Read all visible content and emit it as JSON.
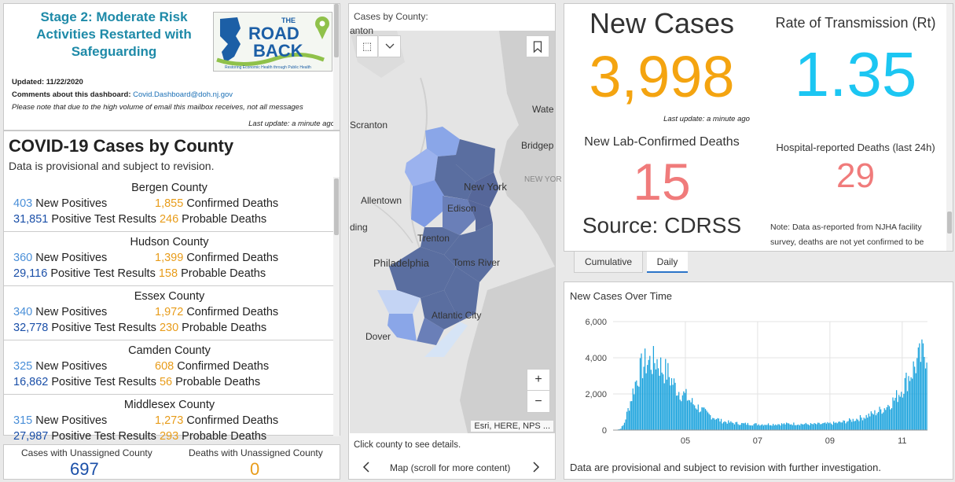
{
  "header": {
    "stage_title": "Stage 2: Moderate Risk Activities Restarted with Safeguarding",
    "logo_text_the": "THE",
    "logo_text_road": "ROAD",
    "logo_text_back": "BACK",
    "logo_tagline": "Restoring Economic Health through Public Health",
    "updated": "Updated: 11/22/2020",
    "comments_label": "Comments about this dashboard:",
    "comments_email": "Covid.Dashboard@doh.nj.gov",
    "note": "Please note that due to the high volume of email this mailbox receives, not all messages",
    "last_update": "Last update: a minute ago"
  },
  "county_list": {
    "title": "COVID-19 Cases by County",
    "subtitle": "Data is provisional and subject to revision.",
    "label_new_positives": "New Positives",
    "label_confirmed_deaths": "Confirmed Deaths",
    "label_positive_results": "Positive Test Results",
    "label_probable_deaths": "Probable Deaths",
    "counties": [
      {
        "name": "Bergen County",
        "new_positives": "403",
        "confirmed_deaths": "1,855",
        "positive_results": "31,851",
        "probable_deaths": "246"
      },
      {
        "name": "Hudson County",
        "new_positives": "360",
        "confirmed_deaths": "1,399",
        "positive_results": "29,116",
        "probable_deaths": "158"
      },
      {
        "name": "Essex County",
        "new_positives": "340",
        "confirmed_deaths": "1,972",
        "positive_results": "32,778",
        "probable_deaths": "230"
      },
      {
        "name": "Camden County",
        "new_positives": "325",
        "confirmed_deaths": "608",
        "positive_results": "16,862",
        "probable_deaths": "56"
      },
      {
        "name": "Middlesex County",
        "new_positives": "315",
        "confirmed_deaths": "1,273",
        "positive_results": "27,987",
        "probable_deaths": "293"
      }
    ]
  },
  "unassigned": {
    "cases_label": "Cases with Unassigned County",
    "cases_value": "697",
    "deaths_label": "Deaths with Unassigned County",
    "deaths_value": "0"
  },
  "map": {
    "title": "Cases by County:",
    "places": [
      "Scranton",
      "Wate",
      "Bridgep",
      "Allentown",
      "New York",
      "NEW YOR",
      "Edison",
      "ding",
      "Trenton",
      "Philadelphia",
      "Toms River",
      "Atlantic City",
      "Dover",
      "anton"
    ],
    "attribution": "Esri, HERE, NPS ...",
    "hint": "Click county to see details.",
    "nav_label": "Map (scroll for more content)",
    "zoom_in": "+",
    "zoom_out": "−"
  },
  "stats": {
    "new_cases_label": "New Cases",
    "new_cases_value": "3,998",
    "rt_label": "Rate of Transmission (Rt)",
    "rt_value": "1.35",
    "last_update": "Last update: a minute ago",
    "lab_deaths_label": "New Lab-Confirmed Deaths",
    "lab_deaths_value": "15",
    "source": "Source: CDRSS",
    "hosp_deaths_label": "Hospital-reported Deaths (last 24h)",
    "hosp_deaths_value": "29",
    "note": "Note: Data as-reported from NJHA facility survey, deaths are not yet confirmed to be"
  },
  "tabs": {
    "cumulative": "Cumulative",
    "daily": "Daily"
  },
  "colors": {
    "orange": "#f4a410",
    "cyan": "#1cc6f2",
    "salmon": "#f07b7b",
    "bar": "#1ba3dd"
  },
  "chart_data": {
    "type": "bar",
    "title": "New Cases Over Time",
    "note": "Data are provisional and subject to revision with further investigation.",
    "ylim": [
      0,
      6000
    ],
    "yticks": [
      "0",
      "2,000",
      "4,000",
      "6,000"
    ],
    "xticks": [
      "05",
      "07",
      "09",
      "11"
    ],
    "xtick_months": [
      5,
      7,
      9,
      11
    ],
    "x_start_month": 3.0,
    "x_end_month": 11.7,
    "monthly_profile": [
      [
        3.0,
        0
      ],
      [
        3.1,
        20
      ],
      [
        3.2,
        60
      ],
      [
        3.3,
        300
      ],
      [
        3.4,
        1000
      ],
      [
        3.5,
        1700
      ],
      [
        3.6,
        2500
      ],
      [
        3.7,
        3000
      ],
      [
        3.8,
        3500
      ],
      [
        3.9,
        3700
      ],
      [
        4.0,
        3800
      ],
      [
        4.1,
        3700
      ],
      [
        4.2,
        3900
      ],
      [
        4.3,
        3600
      ],
      [
        4.4,
        3300
      ],
      [
        4.5,
        3200
      ],
      [
        4.6,
        2800
      ],
      [
        4.7,
        2500
      ],
      [
        4.8,
        2200
      ],
      [
        5.0,
        1900
      ],
      [
        5.2,
        1500
      ],
      [
        5.4,
        1200
      ],
      [
        5.6,
        900
      ],
      [
        5.8,
        700
      ],
      [
        6.0,
        500
      ],
      [
        6.3,
        400
      ],
      [
        6.6,
        350
      ],
      [
        7.0,
        320
      ],
      [
        7.5,
        330
      ],
      [
        8.0,
        350
      ],
      [
        8.5,
        320
      ],
      [
        9.0,
        360
      ],
      [
        9.3,
        420
      ],
      [
        9.6,
        550
      ],
      [
        9.9,
        700
      ],
      [
        10.2,
        900
      ],
      [
        10.5,
        1200
      ],
      [
        10.8,
        1700
      ],
      [
        11.0,
        2300
      ],
      [
        11.2,
        3000
      ],
      [
        11.4,
        3700
      ],
      [
        11.55,
        4100
      ],
      [
        11.7,
        4400
      ]
    ]
  }
}
